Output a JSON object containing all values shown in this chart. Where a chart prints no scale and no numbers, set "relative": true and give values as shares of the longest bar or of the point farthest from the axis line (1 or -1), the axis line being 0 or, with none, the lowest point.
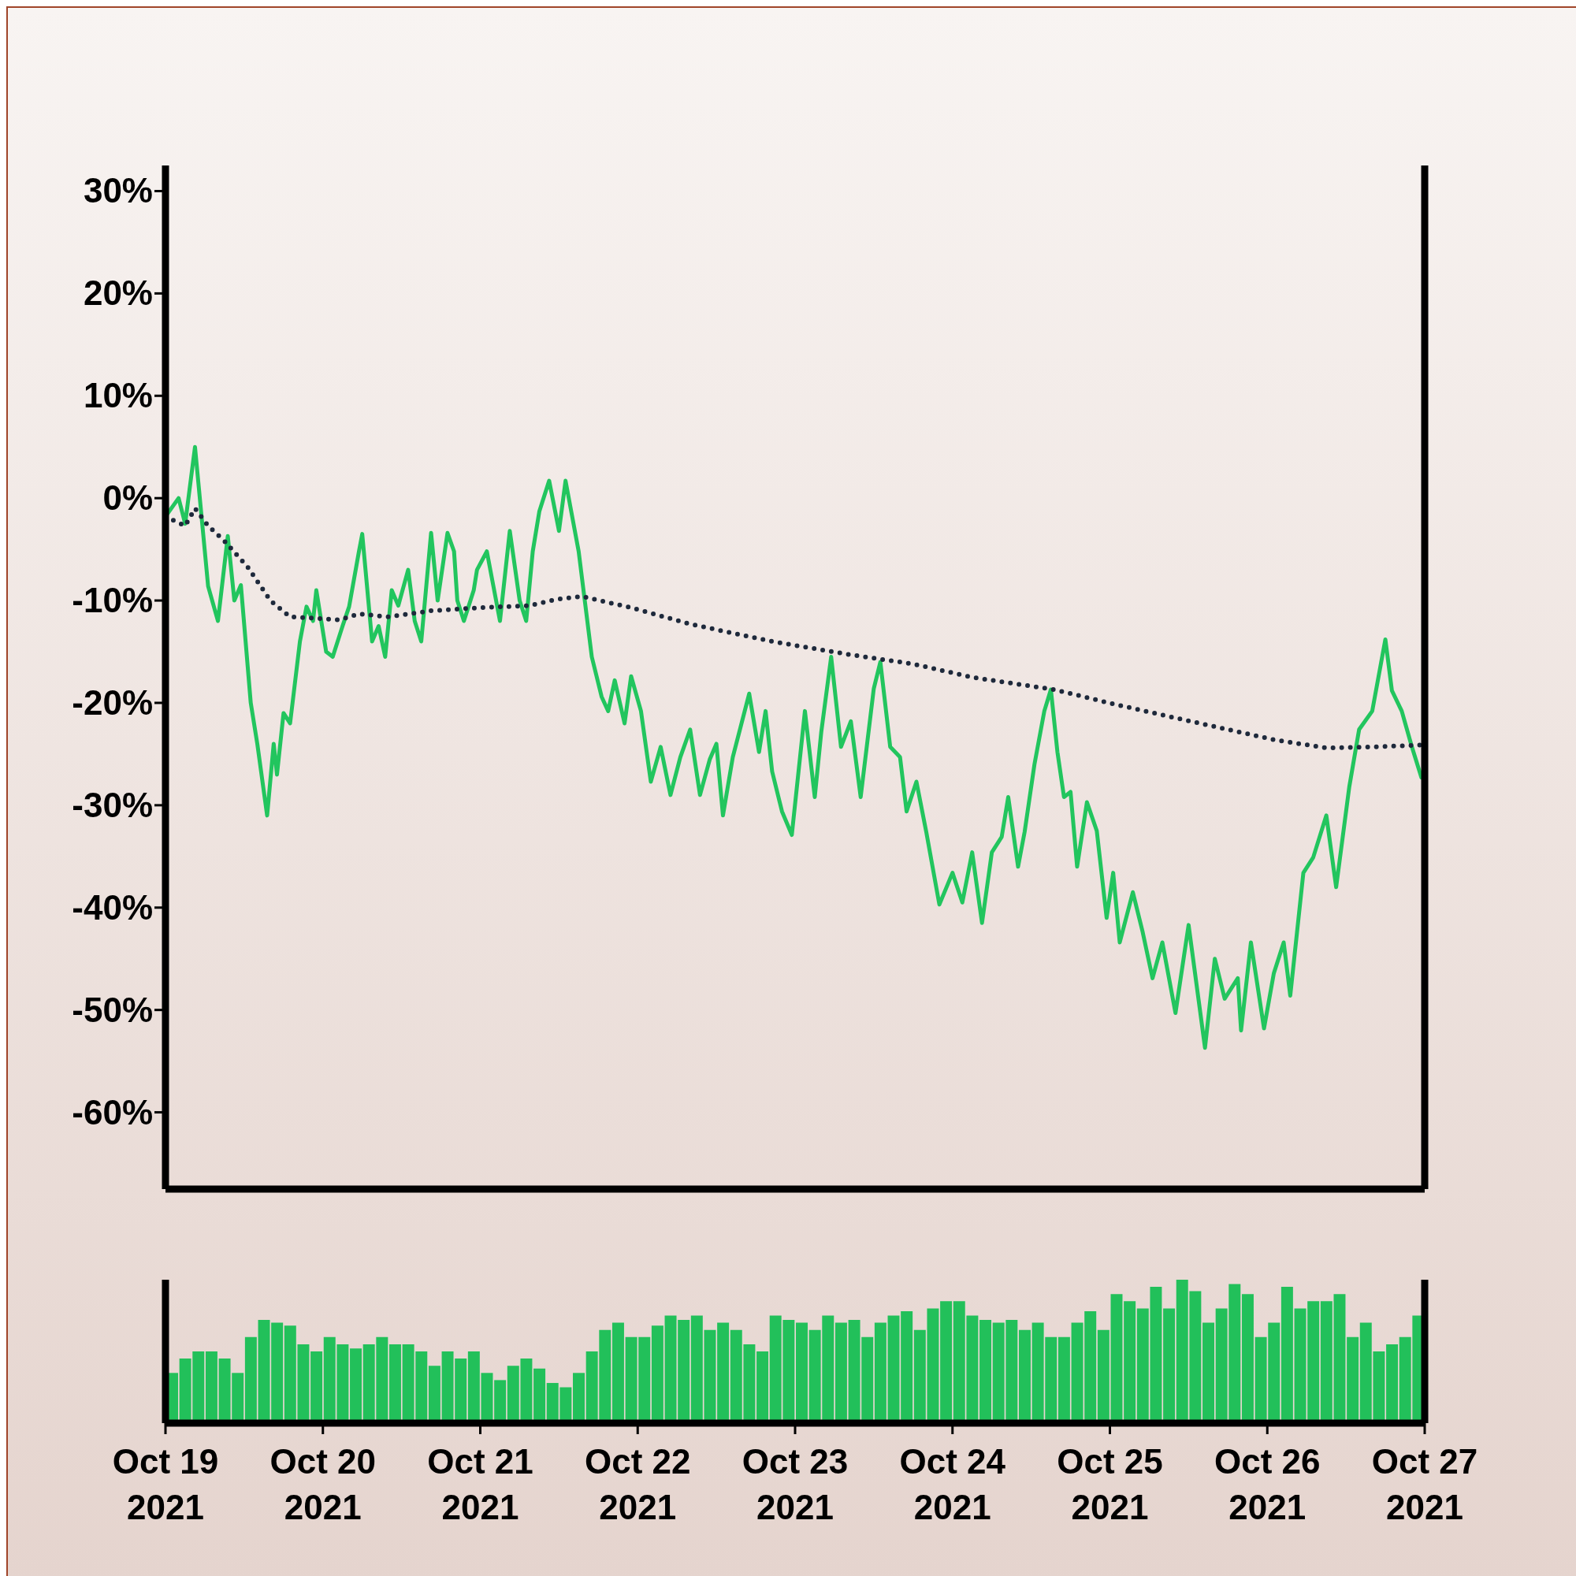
{
  "chart_data": [
    {
      "type": "line",
      "xlim": [
        "2021-10-19",
        "2021-10-27"
      ],
      "ylim": [
        -67.5,
        32.5
      ],
      "yticks": [
        {
          "value": 30,
          "label": "30%"
        },
        {
          "value": 20,
          "label": "20%"
        },
        {
          "value": 10,
          "label": "10%"
        },
        {
          "value": 0,
          "label": "0%"
        },
        {
          "value": -10,
          "label": "-10%"
        },
        {
          "value": -20,
          "label": "-20%"
        },
        {
          "value": -30,
          "label": "-30%"
        },
        {
          "value": -40,
          "label": "-40%"
        },
        {
          "value": -50,
          "label": "-50%"
        },
        {
          "value": -60,
          "label": "-60%"
        }
      ],
      "tick_labels": "y",
      "marker": "none",
      "series": [
        {
          "color": "#22c55e",
          "line_style": "solid",
          "x": [
            "2021-10-19T00:00",
            "2021-10-19T02:00",
            "2021-10-19T03:00",
            "2021-10-19T04:30",
            "2021-10-19T06:30",
            "2021-10-19T08:00",
            "2021-10-19T09:30",
            "2021-10-19T10:30",
            "2021-10-19T11:30",
            "2021-10-19T13:00",
            "2021-10-19T14:00",
            "2021-10-19T15:30",
            "2021-10-19T16:30",
            "2021-10-19T17:00",
            "2021-10-19T18:00",
            "2021-10-19T19:00",
            "2021-10-19T20:30",
            "2021-10-19T21:30",
            "2021-10-19T22:30",
            "2021-10-19T23:00",
            "2021-10-20T00:30",
            "2021-10-20T01:30",
            "2021-10-20T03:00",
            "2021-10-20T04:00",
            "2021-10-20T05:30",
            "2021-10-20T06:00",
            "2021-10-20T07:30",
            "2021-10-20T08:30",
            "2021-10-20T09:30",
            "2021-10-20T10:30",
            "2021-10-20T11:30",
            "2021-10-20T13:00",
            "2021-10-20T14:00",
            "2021-10-20T15:00",
            "2021-10-20T16:30",
            "2021-10-20T17:30",
            "2021-10-20T19:00",
            "2021-10-20T20:00",
            "2021-10-20T20:30",
            "2021-10-20T21:30",
            "2021-10-20T23:00",
            "2021-10-20T23:30",
            "2021-10-21T01:00",
            "2021-10-21T02:00",
            "2021-10-21T03:00",
            "2021-10-21T04:30",
            "2021-10-21T06:00",
            "2021-10-21T07:00",
            "2021-10-21T08:00",
            "2021-10-21T09:00",
            "2021-10-21T10:30",
            "2021-10-21T12:00",
            "2021-10-21T13:00",
            "2021-10-21T15:00",
            "2021-10-21T17:00",
            "2021-10-21T18:30",
            "2021-10-21T19:30",
            "2021-10-21T20:30",
            "2021-10-21T22:00",
            "2021-10-21T23:00",
            "2021-10-22T00:30",
            "2021-10-22T02:00",
            "2021-10-22T03:30",
            "2021-10-22T05:00",
            "2021-10-22T06:30",
            "2021-10-22T08:00",
            "2021-10-22T09:30",
            "2021-10-22T11:00",
            "2021-10-22T12:00",
            "2021-10-22T13:00",
            "2021-10-22T14:30",
            "2021-10-22T17:00",
            "2021-10-22T18:30",
            "2021-10-22T19:30",
            "2021-10-22T20:30",
            "2021-10-22T22:00",
            "2021-10-22T23:30",
            "2021-10-23T01:30",
            "2021-10-23T03:00",
            "2021-10-23T04:00",
            "2021-10-23T05:30",
            "2021-10-23T07:00",
            "2021-10-23T08:30",
            "2021-10-23T10:00",
            "2021-10-23T12:00",
            "2021-10-23T13:00",
            "2021-10-23T14:30",
            "2021-10-23T16:00",
            "2021-10-23T17:00",
            "2021-10-23T18:30",
            "2021-10-23T20:00",
            "2021-10-23T22:00",
            "2021-10-24T00:00",
            "2021-10-24T01:30",
            "2021-10-24T03:00",
            "2021-10-24T04:30",
            "2021-10-24T06:00",
            "2021-10-24T07:30",
            "2021-10-24T08:30",
            "2021-10-24T10:00",
            "2021-10-24T11:00",
            "2021-10-24T12:30",
            "2021-10-24T14:00",
            "2021-10-24T15:00",
            "2021-10-24T16:00",
            "2021-10-24T17:00",
            "2021-10-24T18:00",
            "2021-10-24T19:00",
            "2021-10-24T20:30",
            "2021-10-24T22:00",
            "2021-10-24T23:30",
            "2021-10-25T00:30",
            "2021-10-25T01:30",
            "2021-10-25T03:30",
            "2021-10-25T05:00",
            "2021-10-25T06:30",
            "2021-10-25T08:00",
            "2021-10-25T10:00",
            "2021-10-25T12:00",
            "2021-10-25T14:30",
            "2021-10-25T16:00",
            "2021-10-25T17:30",
            "2021-10-25T19:30",
            "2021-10-25T20:00",
            "2021-10-25T21:30",
            "2021-10-25T23:30",
            "2021-10-26T01:00",
            "2021-10-26T02:30",
            "2021-10-26T03:30",
            "2021-10-26T05:30",
            "2021-10-26T07:00",
            "2021-10-26T09:00",
            "2021-10-26T10:30",
            "2021-10-26T12:30",
            "2021-10-26T14:00",
            "2021-10-26T16:00",
            "2021-10-26T18:00",
            "2021-10-26T19:00",
            "2021-10-26T20:30",
            "2021-10-26T22:00",
            "2021-10-26T23:30"
          ],
          "values": [
            -1.8,
            0,
            -2.5,
            5,
            -8.6,
            -12,
            -3.7,
            -10,
            -8.5,
            -20,
            -24,
            -31,
            -24,
            -27,
            -21,
            -22,
            -14,
            -10.6,
            -12,
            -9,
            -15,
            -15.5,
            -12.5,
            -10.6,
            -5.2,
            -3.5,
            -14,
            -12.5,
            -15.5,
            -9,
            -10.5,
            -7,
            -12,
            -14,
            -3.4,
            -10,
            -3.4,
            -5.2,
            -10,
            -12,
            -9,
            -7,
            -5.2,
            -8.6,
            -12,
            -3.2,
            -10,
            -12,
            -5.2,
            -1.3,
            1.7,
            -3.2,
            1.7,
            -5.2,
            -15.5,
            -19.4,
            -20.8,
            -17.8,
            -22,
            -17.4,
            -20.8,
            -27.7,
            -24.3,
            -29,
            -25.3,
            -22.6,
            -29,
            -25.5,
            -24,
            -31,
            -25.3,
            -19.1,
            -24.8,
            -20.8,
            -26.7,
            -30.6,
            -32.9,
            -20.8,
            -29.2,
            -22.8,
            -15.5,
            -24.3,
            -21.8,
            -29.2,
            -18.6,
            -16,
            -24.3,
            -25.3,
            -30.6,
            -27.7,
            -32.6,
            -39.7,
            -36.6,
            -39.5,
            -34.6,
            -41.5,
            -34.6,
            -33.1,
            -29.2,
            -36,
            -32.6,
            -26,
            -20.8,
            -18.7,
            -24.8,
            -29.2,
            -28.7,
            -36,
            -29.7,
            -32.5,
            -41,
            -36.6,
            -43.4,
            -38.5,
            -42.4,
            -46.9,
            -43.4,
            -50.3,
            -41.7,
            -53.7,
            -45,
            -48.9,
            -46.9,
            -52,
            -43.4,
            -51.8,
            -46.4,
            -43.4,
            -48.6,
            -36.6,
            -35.1,
            -31,
            -38,
            -28.2,
            -22.6,
            -20.8,
            -13.8,
            -18.8,
            -20.8,
            -24.2,
            -27.3
          ]
        },
        {
          "color": "#1e293b",
          "line_style": "dotted",
          "x": [
            "2021-10-19T00:00",
            "2021-10-19T03:00",
            "2021-10-19T04:30",
            "2021-10-19T06:30",
            "2021-10-19T09:00",
            "2021-10-19T12:30",
            "2021-10-19T16:00",
            "2021-10-19T19:00",
            "2021-10-19T22:00",
            "2021-10-20T02:30",
            "2021-10-20T05:30",
            "2021-10-20T10:00",
            "2021-10-20T16:30",
            "2021-10-21T00:00",
            "2021-10-21T07:30",
            "2021-10-21T11:30",
            "2021-10-21T15:30",
            "2021-10-21T23:00",
            "2021-10-22T08:00",
            "2021-10-22T20:30",
            "2021-10-23T08:30",
            "2021-10-23T18:00",
            "2021-10-24T03:00",
            "2021-10-24T15:30",
            "2021-10-25T00:30",
            "2021-10-25T13:00",
            "2021-10-26T01:00",
            "2021-10-26T09:00",
            "2021-10-26T16:30",
            "2021-10-27T00:00"
          ],
          "values": [
            -1.8,
            -2.7,
            -1,
            -2.7,
            -4.2,
            -6.7,
            -10,
            -11.6,
            -11.7,
            -11.9,
            -11.3,
            -11.6,
            -11,
            -10.7,
            -10.5,
            -9.9,
            -9.6,
            -10.7,
            -12.3,
            -14,
            -15.3,
            -16.2,
            -17.5,
            -18.7,
            -20.1,
            -21.9,
            -23.6,
            -24.4,
            -24.3,
            -24.1
          ]
        }
      ]
    },
    {
      "type": "bar",
      "relative": true,
      "color": "#22c05a",
      "tick_labels": "x",
      "xlim": [
        "2021-10-19",
        "2021-10-27"
      ],
      "xticks": [
        {
          "value": "2021-10-19",
          "label": "Oct 19\n2021"
        },
        {
          "value": "2021-10-20",
          "label": "Oct 20\n2021"
        },
        {
          "value": "2021-10-21",
          "label": "Oct 21\n2021"
        },
        {
          "value": "2021-10-22",
          "label": "Oct 22\n2021"
        },
        {
          "value": "2021-10-23",
          "label": "Oct 23\n2021"
        },
        {
          "value": "2021-10-24",
          "label": "Oct 24\n2021"
        },
        {
          "value": "2021-10-25",
          "label": "Oct 25\n2021"
        },
        {
          "value": "2021-10-26",
          "label": "Oct 26\n2021"
        },
        {
          "value": "2021-10-27",
          "label": "Oct 27\n2021"
        }
      ],
      "x": [
        "2021-10-19T01:00",
        "2021-10-19T03:00",
        "2021-10-19T05:00",
        "2021-10-19T07:00",
        "2021-10-19T09:00",
        "2021-10-19T11:00",
        "2021-10-19T13:00",
        "2021-10-19T15:00",
        "2021-10-19T17:00",
        "2021-10-19T19:00",
        "2021-10-19T21:00",
        "2021-10-19T23:00",
        "2021-10-20T01:00",
        "2021-10-20T03:00",
        "2021-10-20T05:00",
        "2021-10-20T07:00",
        "2021-10-20T09:00",
        "2021-10-20T11:00",
        "2021-10-20T13:00",
        "2021-10-20T15:00",
        "2021-10-20T17:00",
        "2021-10-20T19:00",
        "2021-10-20T21:00",
        "2021-10-20T23:00",
        "2021-10-21T01:00",
        "2021-10-21T03:00",
        "2021-10-21T05:00",
        "2021-10-21T07:00",
        "2021-10-21T09:00",
        "2021-10-21T11:00",
        "2021-10-21T13:00",
        "2021-10-21T15:00",
        "2021-10-21T17:00",
        "2021-10-21T19:00",
        "2021-10-21T21:00",
        "2021-10-21T23:00",
        "2021-10-22T01:00",
        "2021-10-22T03:00",
        "2021-10-22T05:00",
        "2021-10-22T07:00",
        "2021-10-22T09:00",
        "2021-10-22T11:00",
        "2021-10-22T13:00",
        "2021-10-22T15:00",
        "2021-10-22T17:00",
        "2021-10-22T19:00",
        "2021-10-22T21:00",
        "2021-10-22T23:00",
        "2021-10-23T01:00",
        "2021-10-23T03:00",
        "2021-10-23T05:00",
        "2021-10-23T07:00",
        "2021-10-23T09:00",
        "2021-10-23T11:00",
        "2021-10-23T13:00",
        "2021-10-23T15:00",
        "2021-10-23T17:00",
        "2021-10-23T19:00",
        "2021-10-23T21:00",
        "2021-10-23T23:00",
        "2021-10-24T01:00",
        "2021-10-24T03:00",
        "2021-10-24T05:00",
        "2021-10-24T07:00",
        "2021-10-24T09:00",
        "2021-10-24T11:00",
        "2021-10-24T13:00",
        "2021-10-24T15:00",
        "2021-10-24T17:00",
        "2021-10-24T19:00",
        "2021-10-24T21:00",
        "2021-10-24T23:00",
        "2021-10-25T01:00",
        "2021-10-25T03:00",
        "2021-10-25T05:00",
        "2021-10-25T07:00",
        "2021-10-25T09:00",
        "2021-10-25T11:00",
        "2021-10-25T13:00",
        "2021-10-25T15:00",
        "2021-10-25T17:00",
        "2021-10-25T19:00",
        "2021-10-25T21:00",
        "2021-10-25T23:00",
        "2021-10-26T01:00",
        "2021-10-26T03:00",
        "2021-10-26T05:00",
        "2021-10-26T07:00",
        "2021-10-26T09:00",
        "2021-10-26T11:00",
        "2021-10-26T13:00",
        "2021-10-26T15:00",
        "2021-10-26T17:00",
        "2021-10-26T19:00",
        "2021-10-26T21:00",
        "2021-10-26T23:00"
      ],
      "values": [
        0.35,
        0.45,
        0.5,
        0.5,
        0.45,
        0.35,
        0.6,
        0.72,
        0.7,
        0.68,
        0.55,
        0.5,
        0.6,
        0.55,
        0.52,
        0.55,
        0.6,
        0.55,
        0.55,
        0.5,
        0.4,
        0.5,
        0.45,
        0.5,
        0.35,
        0.3,
        0.4,
        0.45,
        0.38,
        0.28,
        0.25,
        0.35,
        0.5,
        0.65,
        0.7,
        0.6,
        0.6,
        0.68,
        0.75,
        0.72,
        0.75,
        0.65,
        0.7,
        0.65,
        0.55,
        0.5,
        0.75,
        0.72,
        0.7,
        0.65,
        0.75,
        0.7,
        0.72,
        0.6,
        0.7,
        0.75,
        0.78,
        0.65,
        0.8,
        0.85,
        0.85,
        0.75,
        0.72,
        0.7,
        0.72,
        0.65,
        0.7,
        0.6,
        0.6,
        0.7,
        0.78,
        0.65,
        0.9,
        0.85,
        0.8,
        0.95,
        0.8,
        1,
        0.92,
        0.7,
        0.8,
        0.97,
        0.9,
        0.6,
        0.7,
        0.95,
        0.8,
        0.85,
        0.85,
        0.9,
        0.6,
        0.7,
        0.5,
        0.55,
        0.6,
        0.75
      ]
    }
  ]
}
